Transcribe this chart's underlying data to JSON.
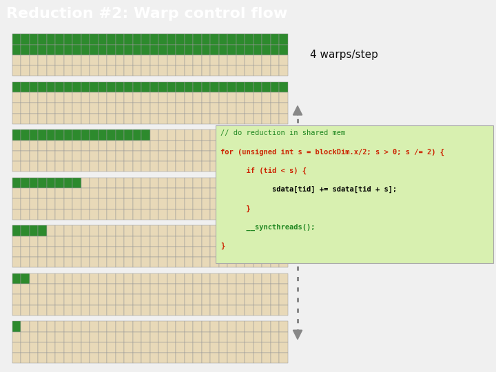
{
  "title": "Reduction #2: Warp control flow",
  "title_bg": "#3d3d8f",
  "title_fg": "#ffffff",
  "title_fontsize": 16,
  "bg_color": "#f0f0f0",
  "cell_active": "#2d8a2d",
  "cell_inactive": "#e8d9b8",
  "cell_border": "#999999",
  "num_threads": 32,
  "rows_per_group": 4,
  "groups": [
    {
      "active_rows": [
        0,
        1
      ],
      "active_threads": 32
    },
    {
      "active_rows": [
        0
      ],
      "active_threads": 32
    },
    {
      "active_rows": [
        0
      ],
      "active_threads": 16
    },
    {
      "active_rows": [
        0
      ],
      "active_threads": 8
    },
    {
      "active_rows": [
        0
      ],
      "active_threads": 4
    },
    {
      "active_rows": [
        0
      ],
      "active_threads": 2
    },
    {
      "active_rows": [
        0
      ],
      "active_threads": 1
    }
  ],
  "warps_label": "4 warps/step",
  "warps_fontsize": 11,
  "code_box_bg": "#d8f0b0",
  "code_lines": [
    {
      "text": "// do reduction in shared mem",
      "color": "#228822",
      "bold": false
    },
    {
      "text": "for (unsigned int s = blockDim.x/2; s > 0; s /= 2) {",
      "color": "#cc2200",
      "bold": true
    },
    {
      "text": "      if (tid < s) {",
      "color": "#cc2200",
      "bold": true
    },
    {
      "text": "            sdata[tid] += sdata[tid + s];",
      "color": "#000000",
      "bold": true
    },
    {
      "text": "      }",
      "color": "#cc2200",
      "bold": true
    },
    {
      "text": "      __syncthreads();",
      "color": "#228822",
      "bold": true
    },
    {
      "text": "}",
      "color": "#cc2200",
      "bold": true
    }
  ],
  "arrow_color": "#888888"
}
